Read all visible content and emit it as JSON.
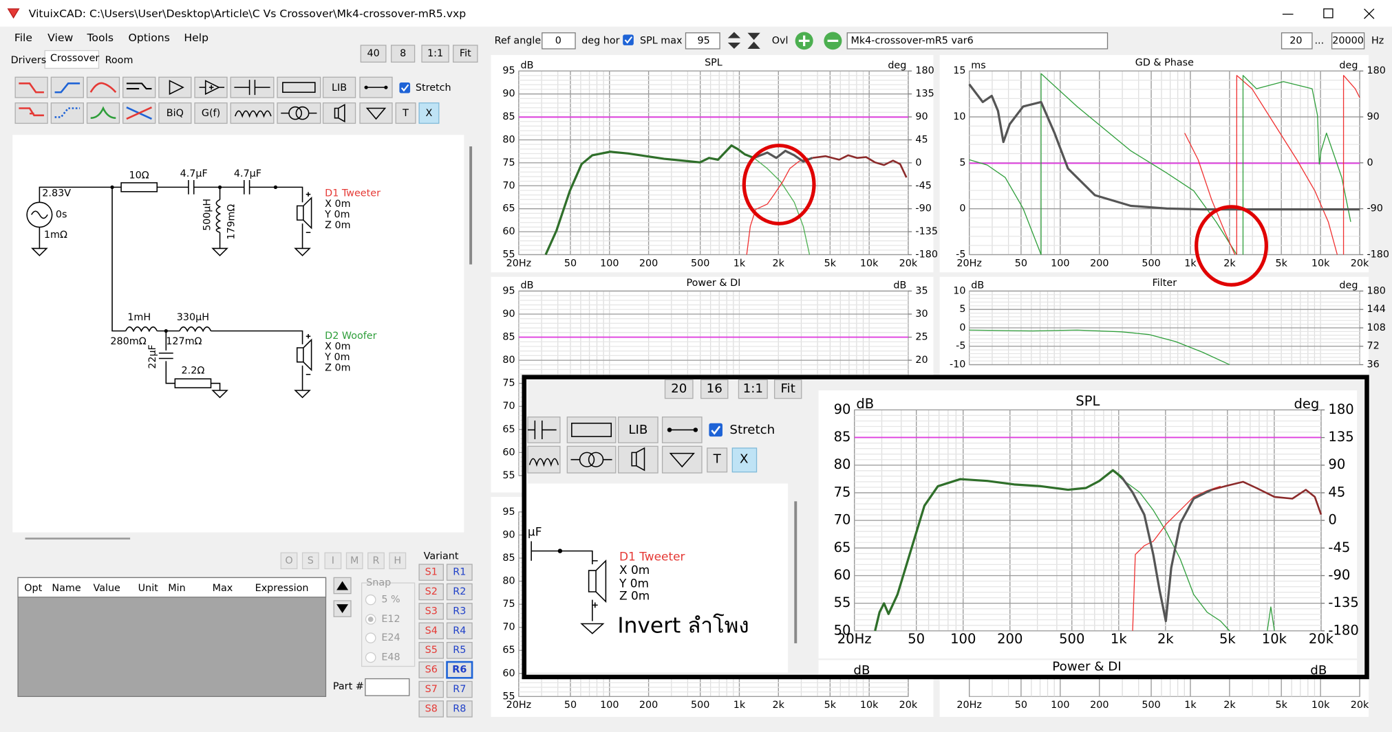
{
  "window": {
    "title": "VituixCAD: C:\\Users\\User\\Desktop\\Article\\C Vs Crossover\\Mk4-crossover-mR5.vxp"
  },
  "menu": [
    "File",
    "View",
    "Tools",
    "Options",
    "Help"
  ],
  "left_tabs": [
    "Drivers",
    "Crossover",
    "Room"
  ],
  "zoom": [
    "40",
    "8",
    "1:1",
    "Fit"
  ],
  "toolbar": {
    "lib": "LIB",
    "stretch": "Stretch",
    "biq": "BiQ",
    "gf": "G(f)",
    "t": "T",
    "x": "X"
  },
  "schematic": {
    "source": {
      "voltage": "2.83V",
      "delay": "0s",
      "resistance": "1mΩ"
    },
    "tweeter_parts": [
      "10Ω",
      "4.7µF",
      "4.7µF",
      "500µH",
      "179mΩ"
    ],
    "tweeter": {
      "name": "D1 Tweeter",
      "x": "X 0m",
      "y": "Y 0m",
      "z": "Z 0m"
    },
    "woofer_parts": [
      "1mH",
      "330µH",
      "280mΩ",
      "127mΩ",
      "22µF",
      "2.2Ω"
    ],
    "woofer": {
      "name": "D2 Woofer",
      "x": "X 0m",
      "y": "Y 0m",
      "z": "Z 0m"
    }
  },
  "parameters": {
    "flags": [
      "O",
      "S",
      "I",
      "M",
      "R",
      "H"
    ],
    "columns": [
      "Opt",
      "Name",
      "Value",
      "Unit",
      "Min",
      "Max",
      "Expression"
    ],
    "snap": {
      "label": "Snap",
      "options": [
        "5 %",
        "E12",
        "E24",
        "E48"
      ]
    },
    "part_label": "Part #"
  },
  "variants": {
    "label": "Variant",
    "s": [
      "S1",
      "S2",
      "S3",
      "S4",
      "S5",
      "S6",
      "S7",
      "S8"
    ],
    "r": [
      "R1",
      "R2",
      "R3",
      "R4",
      "R5",
      "R6",
      "R7",
      "R8"
    ]
  },
  "topbar": {
    "ref_angle_label": "Ref angle",
    "ref_angle": "0",
    "ref_angle_unit": "deg hor",
    "spl_max_label": "SPL max",
    "spl_max": "95",
    "ovl": "Ovl",
    "variant_name": "Mk4-crossover-mR5 var6",
    "f_min": "20",
    "range_sep": "...",
    "f_max": "20000",
    "f_unit": "Hz"
  },
  "charts": [
    {
      "title": "SPL",
      "left_unit": "dB",
      "right_unit": "deg",
      "ylim": [
        55,
        95
      ],
      "yticks": [
        95,
        90,
        85,
        80,
        75,
        70,
        65,
        60,
        55
      ],
      "y2lim": [
        -180,
        180
      ],
      "y2ticks": [
        180,
        135,
        90,
        45,
        0,
        -45,
        -90,
        -135,
        -180
      ],
      "xlim": [
        20,
        20000
      ],
      "xticks": [
        {
          "value": 20,
          "label": "20Hz"
        },
        50,
        100,
        200,
        500,
        {
          "value": 1000,
          "label": "1k"
        },
        {
          "value": 2000,
          "label": "2k"
        },
        {
          "value": 5000,
          "label": "5k"
        },
        {
          "value": 10000,
          "label": "10k"
        },
        {
          "value": 20000,
          "label": "20k"
        }
      ]
    },
    {
      "title": "GD & Phase",
      "left_unit": "ms",
      "right_unit": "deg",
      "ylim": [
        -5,
        15
      ],
      "yticks": [
        15,
        10,
        5,
        0,
        -5
      ],
      "y2lim": [
        -180,
        180
      ],
      "y2ticks": [
        180,
        90,
        0,
        -90,
        -180
      ],
      "xlim": [
        20,
        20000
      ],
      "xticks": [
        {
          "value": 20,
          "label": "20Hz"
        },
        50,
        100,
        200,
        500,
        {
          "value": 1000,
          "label": "1k"
        },
        {
          "value": 2000,
          "label": "2k"
        },
        {
          "value": 5000,
          "label": "5k"
        },
        {
          "value": 10000,
          "label": "10k"
        },
        {
          "value": 20000,
          "label": "20k"
        }
      ]
    },
    {
      "title": "Power & DI",
      "left_unit": "dB",
      "right_unit": "dB",
      "ylim": [
        55,
        95
      ],
      "yticks": [
        95,
        90,
        85,
        80,
        75,
        70,
        65,
        60,
        55
      ],
      "y2lim": [
        -5,
        35
      ],
      "y2ticks": [
        35,
        30,
        25,
        20
      ],
      "xlim": [
        20,
        20000
      ]
    },
    {
      "title": "Filter",
      "left_unit": "dB",
      "right_unit": "deg",
      "ylim": [
        -10,
        10
      ],
      "yticks": [
        10,
        5,
        0,
        -5,
        -10
      ],
      "y2lim": [
        36,
        180
      ],
      "y2ticks": [
        180,
        144,
        108,
        72,
        36
      ],
      "xlim": [
        20,
        20000
      ]
    },
    {
      "ylim": [
        55,
        95
      ],
      "yticks": [
        95,
        90,
        85,
        80,
        75,
        70,
        65,
        60,
        55
      ],
      "xlim": [
        20,
        20000
      ],
      "xticks": [
        {
          "value": 20,
          "label": "20Hz"
        },
        50,
        100,
        200,
        500,
        {
          "value": 1000,
          "label": "1k"
        },
        {
          "value": 2000,
          "label": "2k"
        },
        {
          "value": 5000,
          "label": "5k"
        },
        {
          "value": 10000,
          "label": "10k"
        },
        {
          "value": 20000,
          "label": "20k"
        }
      ]
    },
    {
      "xlim": [
        20,
        20000
      ],
      "xticks": [
        {
          "value": 20,
          "label": "20Hz"
        },
        50,
        100,
        200,
        500,
        {
          "value": 1000,
          "label": "1k"
        },
        {
          "value": 2000,
          "label": "2k"
        },
        {
          "value": 5000,
          "label": "5k"
        },
        {
          "value": 10000,
          "label": "10k"
        },
        {
          "value": 20000,
          "label": "20k"
        }
      ]
    }
  ],
  "inset": {
    "zoom": [
      "20",
      "16",
      "1:1",
      "Fit"
    ],
    "lib": "LIB",
    "stretch": "Stretch",
    "t": "T",
    "x": "X",
    "cap": "µF",
    "tweeter": {
      "name": "D1 Tweeter",
      "x": "X 0m",
      "y": "Y 0m",
      "z": "Z 0m"
    },
    "note": "Invert ลำโพง",
    "chart": {
      "title": "SPL",
      "left_unit": "dB",
      "right_unit": "deg",
      "ylim": [
        50,
        90
      ],
      "yticks": [
        90,
        85,
        80,
        75,
        70,
        65,
        60,
        55,
        50
      ],
      "y2lim": [
        -180,
        180
      ],
      "y2ticks": [
        180,
        135,
        90,
        45,
        0,
        -45,
        -90,
        -135,
        -180
      ],
      "xlim": [
        20,
        20000
      ],
      "xticks": [
        {
          "value": 20,
          "label": "20Hz"
        },
        50,
        100,
        200,
        500,
        {
          "value": 1000,
          "label": "1k"
        },
        {
          "value": 2000,
          "label": "2k"
        },
        {
          "value": 5000,
          "label": "5k"
        },
        {
          "value": 10000,
          "label": "10k"
        },
        {
          "value": 20000,
          "label": "20k"
        }
      ]
    },
    "lower_chart": {
      "title": "Power & DI",
      "left_unit": "dB",
      "right_unit": "dB"
    }
  }
}
